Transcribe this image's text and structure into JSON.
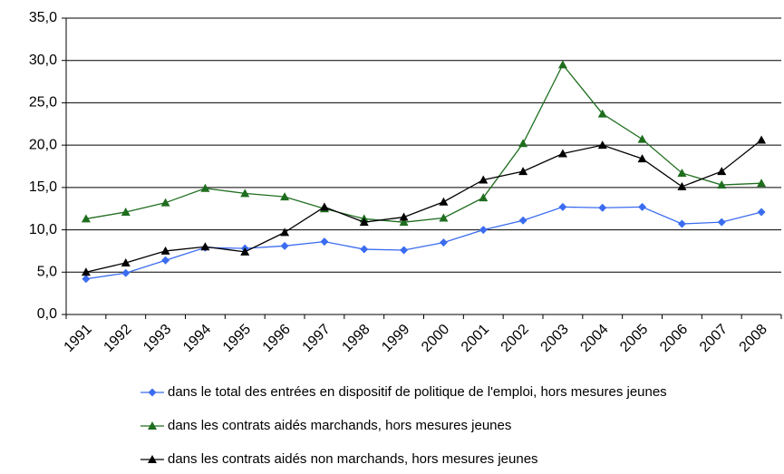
{
  "chart_data": {
    "type": "line",
    "categories": [
      "1991",
      "1992",
      "1993",
      "1994",
      "1995",
      "1996",
      "1997",
      "1998",
      "1999",
      "2000",
      "2001",
      "2002",
      "2003",
      "2004",
      "2005",
      "2006",
      "2007",
      "2008"
    ],
    "series": [
      {
        "name": "dans le total des entrées en dispositif de politique de l'emploi, hors mesures jeunes",
        "color": "#3b6cf0",
        "marker": "diamond",
        "values": [
          4.2,
          4.9,
          6.4,
          7.9,
          7.8,
          8.1,
          8.6,
          7.7,
          7.6,
          8.5,
          10.0,
          11.1,
          12.7,
          12.6,
          12.7,
          10.7,
          10.9,
          12.1
        ]
      },
      {
        "name": "dans les contrats aidés marchands, hors mesures jeunes",
        "color": "#1f6e1f",
        "marker": "triangle",
        "values": [
          11.3,
          12.1,
          13.2,
          14.9,
          14.3,
          13.9,
          12.5,
          11.3,
          10.9,
          11.4,
          13.8,
          20.2,
          29.5,
          23.7,
          20.7,
          16.7,
          15.3,
          15.5
        ]
      },
      {
        "name": "dans les contrats aidés non marchands, hors mesures jeunes",
        "color": "#000000",
        "marker": "triangle",
        "values": [
          5.0,
          6.1,
          7.5,
          8.0,
          7.4,
          9.7,
          12.7,
          10.9,
          11.5,
          13.3,
          15.9,
          16.9,
          19.0,
          20.0,
          18.4,
          15.1,
          16.9,
          20.6
        ]
      }
    ],
    "ylim": [
      0,
      35
    ],
    "yticks": [
      {
        "value": 0,
        "label": "0,0"
      },
      {
        "value": 5,
        "label": "5,0"
      },
      {
        "value": 10,
        "label": "10,0"
      },
      {
        "value": 15,
        "label": "15,0"
      },
      {
        "value": 20,
        "label": "20,0"
      },
      {
        "value": 25,
        "label": "25,0"
      },
      {
        "value": 30,
        "label": "30,0"
      },
      {
        "value": 35,
        "label": "35,0"
      }
    ],
    "grid": true,
    "legend": "bottom"
  }
}
